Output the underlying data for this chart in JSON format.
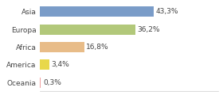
{
  "categories": [
    "Asia",
    "Europa",
    "Africa",
    "America",
    "Oceania"
  ],
  "values": [
    43.3,
    36.2,
    16.8,
    3.4,
    0.3
  ],
  "labels": [
    "43,3%",
    "36,2%",
    "16,8%",
    "3,4%",
    "0,3%"
  ],
  "bar_colors": [
    "#7a9cc8",
    "#b2c87a",
    "#e8bc88",
    "#e8d84a",
    "#f0a0a0"
  ],
  "background_color": "#ffffff",
  "xlim": [
    0,
    68
  ],
  "bar_height": 0.58,
  "label_fontsize": 6.5,
  "tick_fontsize": 6.5
}
